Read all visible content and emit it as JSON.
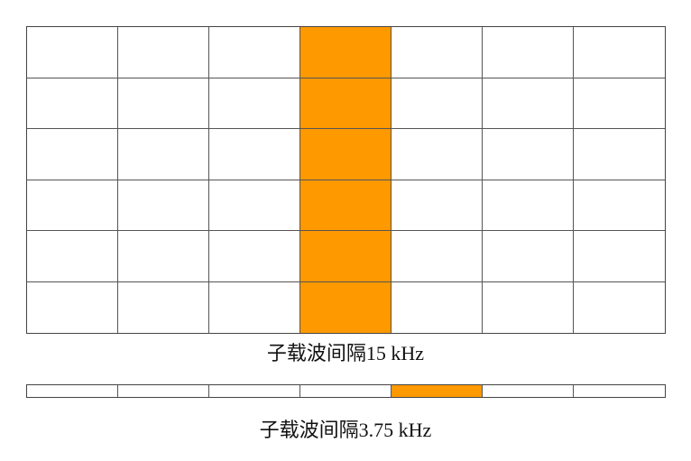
{
  "colors": {
    "highlight": "#FF9900",
    "grid_line": "#555555",
    "background": "#FFFFFF"
  },
  "diagram_15khz": {
    "caption": "子载波间隔15 kHz",
    "columns": 7,
    "rows": 6,
    "highlighted_column": 4
  },
  "diagram_3_75khz": {
    "caption": "子载波间隔3.75 kHz",
    "columns": 7,
    "rows": 1,
    "highlighted_column": 5
  }
}
